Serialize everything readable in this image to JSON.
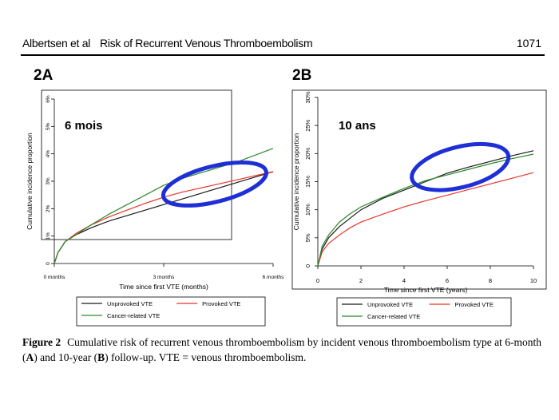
{
  "header": {
    "authors": "Albertsen et al",
    "title": "Risk of Recurrent Venous Thromboembolism",
    "page_number": "1071"
  },
  "caption": {
    "figure_label": "Figure 2",
    "text_a": "Cumulative risk of recurrent venous thromboembolism by incident venous thromboembolism type at 6-month (",
    "bold_a": "A",
    "text_b": ") and 10-year (",
    "bold_b": "B",
    "text_c": ") follow-up. VTE = venous thromboembolism."
  },
  "colors": {
    "unprovoked": "#1a1a1a",
    "provoked": "#e8332a",
    "cancer": "#2a8a2a",
    "highlight": "#1f2fd6"
  },
  "chart_data": [
    {
      "panel": "2A",
      "type": "line",
      "annotation": "6 mois",
      "xlabel": "Time since first VTE (months)",
      "ylabel": "Cumulative incidence proportion",
      "xlim": [
        0,
        6
      ],
      "ylim": [
        0,
        6
      ],
      "x_ticks": [
        0,
        3,
        6
      ],
      "x_tick_labels": [
        "0 months",
        "3 months",
        "6 months"
      ],
      "y_ticks": [
        0,
        1,
        2,
        3,
        4,
        5,
        6
      ],
      "y_tick_labels": [
        "0",
        "1%",
        "2%",
        "3%",
        "4%",
        "5%",
        "6%"
      ],
      "grid": false,
      "legend_position": "bottom",
      "series": [
        {
          "name": "Unprovoked VTE",
          "color_key": "unprovoked",
          "x": [
            0,
            0.1,
            0.3,
            0.6,
            1,
            1.5,
            2,
            2.5,
            3,
            3.5,
            4,
            4.5,
            5,
            5.5,
            6
          ],
          "y": [
            0,
            0.4,
            0.8,
            1.05,
            1.3,
            1.55,
            1.75,
            1.95,
            2.15,
            2.35,
            2.55,
            2.75,
            2.95,
            3.15,
            3.35
          ]
        },
        {
          "name": "Provoked VTE",
          "color_key": "provoked",
          "x": [
            0,
            0.1,
            0.3,
            0.6,
            1,
            1.5,
            2,
            2.5,
            3,
            3.5,
            4,
            4.5,
            5,
            5.5,
            6
          ],
          "y": [
            0,
            0.4,
            0.8,
            1.1,
            1.4,
            1.7,
            1.95,
            2.2,
            2.42,
            2.6,
            2.75,
            2.9,
            3.05,
            3.2,
            3.35
          ]
        },
        {
          "name": "Cancer-related VTE",
          "color_key": "cancer",
          "x": [
            0,
            0.1,
            0.3,
            0.6,
            1,
            1.5,
            2,
            2.5,
            3,
            3.5,
            4,
            4.5,
            5,
            5.5,
            6
          ],
          "y": [
            0,
            0.4,
            0.8,
            1.05,
            1.4,
            1.8,
            2.15,
            2.5,
            2.85,
            3.1,
            3.3,
            3.5,
            3.7,
            3.95,
            4.2
          ]
        }
      ],
      "highlight_ellipse": {
        "cx": 4.4,
        "cy": 2.9,
        "rx": 1.45,
        "ry": 0.65
      }
    },
    {
      "panel": "2B",
      "type": "line",
      "annotation": "10 ans",
      "xlabel": "Time since first VTE (years)",
      "ylabel": "Cumulative incidence proportion",
      "xlim": [
        0,
        10
      ],
      "ylim": [
        0,
        30
      ],
      "x_ticks": [
        0,
        2,
        4,
        6,
        8,
        10
      ],
      "x_tick_labels": [
        "0",
        "2",
        "4",
        "6",
        "8",
        "10"
      ],
      "y_ticks": [
        0,
        5,
        10,
        15,
        20,
        25,
        30
      ],
      "y_tick_labels": [
        "0",
        "5%",
        "10%",
        "15%",
        "20%",
        "25%",
        "30%"
      ],
      "grid": false,
      "legend_position": "bottom",
      "series": [
        {
          "name": "Unprovoked VTE",
          "color_key": "unprovoked",
          "x": [
            0,
            0.2,
            0.5,
            1,
            1.5,
            2,
            3,
            4,
            5,
            6,
            7,
            8,
            9,
            10
          ],
          "y": [
            0,
            3,
            5,
            7,
            8.5,
            10,
            12,
            13.5,
            15,
            16.5,
            17.6,
            18.6,
            19.6,
            20.5
          ]
        },
        {
          "name": "Provoked VTE",
          "color_key": "provoked",
          "x": [
            0,
            0.2,
            0.5,
            1,
            1.5,
            2,
            3,
            4,
            5,
            6,
            7,
            8,
            9,
            10
          ],
          "y": [
            0,
            2.5,
            4,
            5.5,
            6.8,
            7.8,
            9.2,
            10.5,
            11.6,
            12.6,
            13.6,
            14.6,
            15.6,
            16.6
          ]
        },
        {
          "name": "Cancer-related VTE",
          "color_key": "cancer",
          "x": [
            0,
            0.2,
            0.5,
            1,
            1.5,
            2,
            3,
            4,
            5,
            6,
            7,
            8,
            9,
            10
          ],
          "y": [
            0,
            3.5,
            5.5,
            7.8,
            9.3,
            10.5,
            12.2,
            13.8,
            15.2,
            16.2,
            17.2,
            18.2,
            19.1,
            19.9
          ]
        }
      ],
      "highlight_ellipse": {
        "cx": 6.6,
        "cy": 17.6,
        "rx": 2.3,
        "ry": 3.6
      }
    }
  ]
}
